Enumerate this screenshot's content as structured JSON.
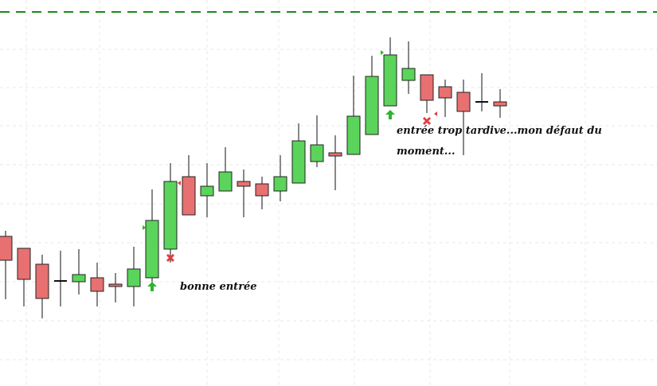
{
  "chart_data": {
    "type": "candlestick",
    "ylim": [
      0,
      48.5
    ],
    "level": 47.0,
    "level_color": "#1a8a1a",
    "up_color": "#5ad45a",
    "down_color": "#e87070",
    "open": [
      18.8,
      17.3,
      15.3,
      13.2,
      13.1,
      13.6,
      12.8,
      12.5,
      13.6,
      17.2,
      26.3,
      23.9,
      24.5,
      25.7,
      25.4,
      24.5,
      25.5,
      28.2,
      29.3,
      29.1,
      31.6,
      35.2,
      38.4,
      39.1,
      37.6,
      36.9,
      35.7,
      35.7
    ],
    "high": [
      19.5,
      17.3,
      16.5,
      17.0,
      17.2,
      15.5,
      14.2,
      17.5,
      24.7,
      28.0,
      29.0,
      28.0,
      30.0,
      27.2,
      26.3,
      29.0,
      33.0,
      34.0,
      31.5,
      39.0,
      41.5,
      43.8,
      43.3,
      39.1,
      38.5,
      38.5,
      39.3,
      37.3
    ],
    "low": [
      10.9,
      10.0,
      8.5,
      10.0,
      11.5,
      10.0,
      10.5,
      10.0,
      13.0,
      15.5,
      21.5,
      21.2,
      24.5,
      21.2,
      22.2,
      23.2,
      25.5,
      27.5,
      24.6,
      29.1,
      31.6,
      35.2,
      36.7,
      34.3,
      33.8,
      29.0,
      34.5,
      33.7
    ],
    "close": [
      15.8,
      13.4,
      11.0,
      13.2,
      14.0,
      11.9,
      12.5,
      14.7,
      20.8,
      25.7,
      21.5,
      25.1,
      26.9,
      25.1,
      23.9,
      26.3,
      30.8,
      30.3,
      28.9,
      33.9,
      38.9,
      41.6,
      39.9,
      35.9,
      36.2,
      34.5,
      35.7,
      35.2
    ],
    "annotations": [
      "bonne entrée",
      "entrée trop tardive...mon défaut du",
      "moment..."
    ]
  }
}
